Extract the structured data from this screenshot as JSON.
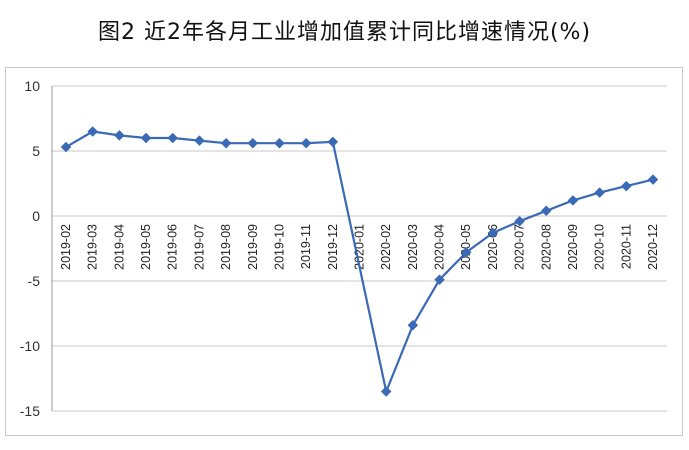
{
  "title": "图2 近2年各月工业增加值累计同比增速情况(%)",
  "colors": {
    "line": "#3a69b6",
    "grid": "#c8c8c8",
    "axis": "#9a9a9a"
  },
  "chart_data": {
    "type": "line",
    "title": "图2 近2年各月工业增加值累计同比增速情况(%)",
    "xlabel": "",
    "ylabel": "",
    "ylim": [
      -15,
      10
    ],
    "yticks": [
      "10",
      "5",
      "0",
      "-5",
      "-10",
      "-15"
    ],
    "categories": [
      "2019-02",
      "2019-03",
      "2019-04",
      "2019-05",
      "2019-06",
      "2019-07",
      "2019-08",
      "2019-09",
      "2019-10",
      "2019-11",
      "2019-12",
      "2020-01",
      "2020-02",
      "2020-03",
      "2020-04",
      "2020-05",
      "2020-06",
      "2020-07",
      "2020-08",
      "2020-09",
      "2020-10",
      "2020-11",
      "2020-12"
    ],
    "series": [
      {
        "values": [
          5.3,
          6.5,
          6.2,
          6.0,
          6.0,
          5.8,
          5.6,
          5.6,
          5.6,
          5.6,
          5.7,
          null,
          -13.5,
          -8.4,
          -4.9,
          -2.8,
          -1.3,
          -0.4,
          0.4,
          1.2,
          1.8,
          2.3,
          2.8
        ]
      }
    ],
    "grid": true,
    "legend": "none"
  }
}
